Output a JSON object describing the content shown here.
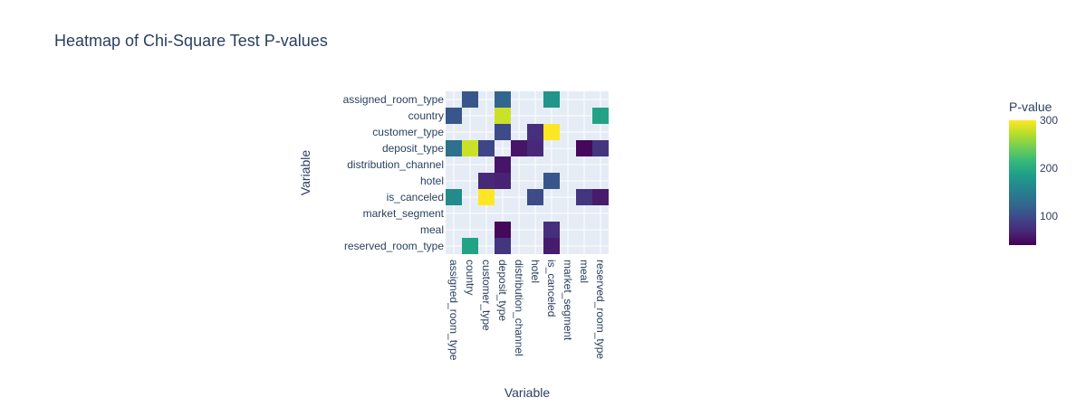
{
  "chart_data": {
    "type": "heatmap",
    "title": "Heatmap of Chi-Square Test P-values",
    "xlabel": "Variable",
    "ylabel": "Variable",
    "x_categories": [
      "assigned_room_type",
      "country",
      "customer_type",
      "deposit_type",
      "distribution_channel",
      "hotel",
      "is_canceled",
      "market_segment",
      "meal",
      "reserved_room_type"
    ],
    "y_categories": [
      "assigned_room_type",
      "country",
      "customer_type",
      "deposit_type",
      "distribution_channel",
      "hotel",
      "is_canceled",
      "market_segment",
      "meal",
      "reserved_room_type"
    ],
    "values": [
      [
        null,
        110,
        null,
        125,
        null,
        null,
        175,
        null,
        null,
        null
      ],
      [
        110,
        null,
        null,
        280,
        null,
        null,
        null,
        null,
        null,
        190
      ],
      [
        null,
        null,
        null,
        100,
        null,
        75,
        300,
        null,
        null,
        null
      ],
      [
        135,
        280,
        95,
        null,
        55,
        70,
        null,
        null,
        45,
        80
      ],
      [
        null,
        null,
        null,
        55,
        null,
        null,
        null,
        null,
        null,
        null
      ],
      [
        null,
        null,
        70,
        65,
        null,
        null,
        110,
        null,
        null,
        null
      ],
      [
        165,
        null,
        300,
        null,
        null,
        100,
        null,
        null,
        80,
        60
      ],
      [
        null,
        null,
        null,
        null,
        null,
        null,
        null,
        null,
        null,
        null
      ],
      [
        null,
        null,
        null,
        45,
        null,
        null,
        75,
        null,
        null,
        null
      ],
      [
        null,
        190,
        null,
        80,
        null,
        null,
        60,
        null,
        null,
        null
      ]
    ],
    "colorscale": "Viridis",
    "zmin": 40,
    "zmax": 300,
    "colorbar_title": "P-value",
    "colorbar_ticks": [
      100,
      200,
      300
    ],
    "colorbar_tick_labels": [
      "100",
      "200",
      "300"
    ],
    "grid": true,
    "plot_background": "#e5ecf6"
  }
}
